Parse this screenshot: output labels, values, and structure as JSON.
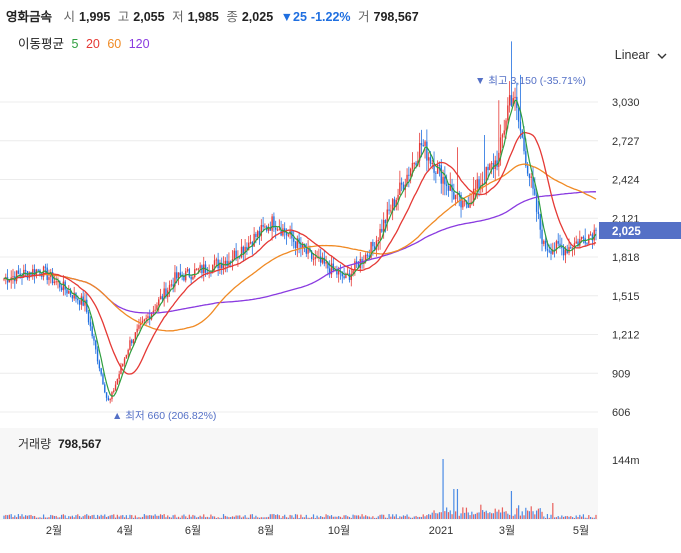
{
  "stock": {
    "name": "영화금속",
    "open_label": "시",
    "open": "1,995",
    "high_label": "고",
    "high": "2,055",
    "low_label": "저",
    "low": "1,985",
    "close_label": "종",
    "close": "2,025",
    "change": "▼25",
    "change_pct": "-1.22%",
    "volume_label": "거",
    "volume": "798,567"
  },
  "moving_averages": {
    "label": "이동평균",
    "items": [
      {
        "label": "5",
        "color": "#2e9e3e"
      },
      {
        "label": "20",
        "color": "#e53935"
      },
      {
        "label": "60",
        "color": "#f08a24"
      },
      {
        "label": "120",
        "color": "#8a3be0"
      }
    ]
  },
  "scale_selector": {
    "label": "Linear",
    "icon": "chevron-down-icon"
  },
  "price_axis": {
    "ticks": [
      "3,030",
      "2,727",
      "2,424",
      "2,121",
      "1,818",
      "1,515",
      "1,212",
      "909",
      "606"
    ]
  },
  "current_price_tag": "2,025",
  "annotations": {
    "high": "▼ 최고 3,150 (-35.71%)",
    "low": "▲ 최저 660 (206.82%)"
  },
  "volume_panel": {
    "label": "거래량",
    "value": "798,567",
    "axis_tick": "144m"
  },
  "time_axis": {
    "ticks": [
      "2월",
      "4월",
      "6월",
      "8월",
      "10월",
      "2021",
      "3월",
      "5월"
    ]
  },
  "colors": {
    "up": "#e53935",
    "down": "#1f6fe0",
    "accent": "#5470c6",
    "grid": "#e8e8e8"
  },
  "chart_data": {
    "type": "candlestick",
    "y_axis_range": [
      606,
      3030
    ],
    "scale": "linear",
    "series": [
      {
        "name": "5",
        "color": "#2e9e3e"
      },
      {
        "name": "20",
        "color": "#e53935"
      },
      {
        "name": "60",
        "color": "#f08a24"
      },
      {
        "name": "120",
        "color": "#8a3be0"
      }
    ],
    "price_path": [
      [
        "2020-01",
        1650
      ],
      [
        "2020-02",
        1720
      ],
      [
        "2020-03",
        1450
      ],
      [
        "2020-03-20",
        660
      ],
      [
        "2020-04",
        1150
      ],
      [
        "2020-05",
        1650
      ],
      [
        "2020-06",
        1720
      ],
      [
        "2020-07",
        1800
      ],
      [
        "2020-08",
        2100
      ],
      [
        "2020-09",
        1820
      ],
      [
        "2020-10",
        1650
      ],
      [
        "2020-11",
        1900
      ],
      [
        "2020-12",
        2700
      ],
      [
        "2021-01",
        2200
      ],
      [
        "2021-02",
        2600
      ],
      [
        "2021-02-20",
        3150
      ],
      [
        "2021-03",
        1900
      ],
      [
        "2021-04",
        1880
      ],
      [
        "2021-05",
        2025
      ]
    ],
    "high": 3150,
    "low": 660,
    "last_close": 2025
  }
}
